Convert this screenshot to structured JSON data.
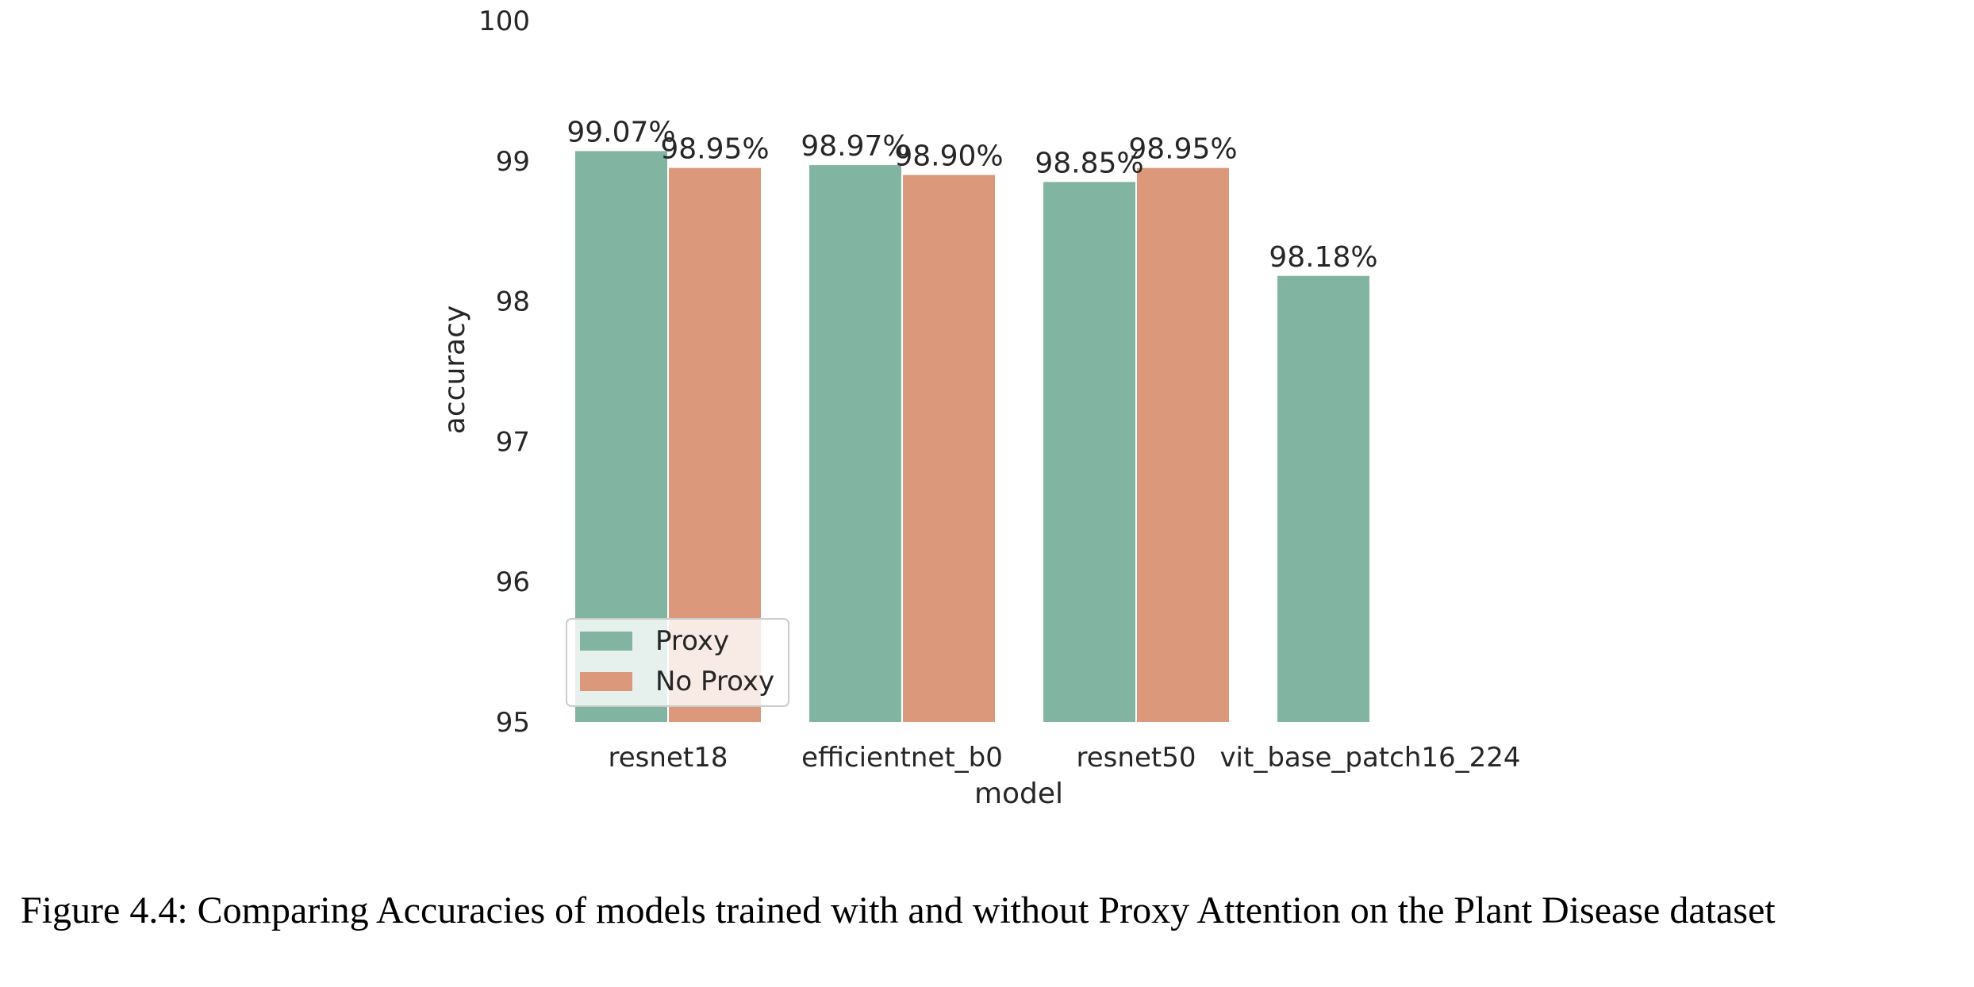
{
  "chart_data": {
    "type": "bar",
    "xlabel": "model",
    "ylabel": "accuracy",
    "categories": [
      "resnet18",
      "efficientnet_b0",
      "resnet50",
      "vit_base_patch16_224"
    ],
    "series": [
      {
        "name": "Proxy",
        "color": "#82b4a2",
        "values": [
          99.07,
          98.97,
          98.85,
          98.18
        ],
        "labels": [
          "99.07%",
          "98.97%",
          "98.85%",
          "98.18%"
        ]
      },
      {
        "name": "No Proxy",
        "color": "#dc987b",
        "values": [
          98.95,
          98.9,
          98.95,
          null
        ],
        "labels": [
          "98.95%",
          "98.90%",
          "98.95%",
          null
        ]
      }
    ],
    "ylim": [
      95,
      100
    ],
    "yticks": [
      95,
      96,
      97,
      98,
      99,
      100
    ],
    "grid": false,
    "legend": "lower-left"
  },
  "caption": "Figure 4.4: Comparing Accuracies of models trained with and without Proxy Attention on the Plant Disease dataset"
}
